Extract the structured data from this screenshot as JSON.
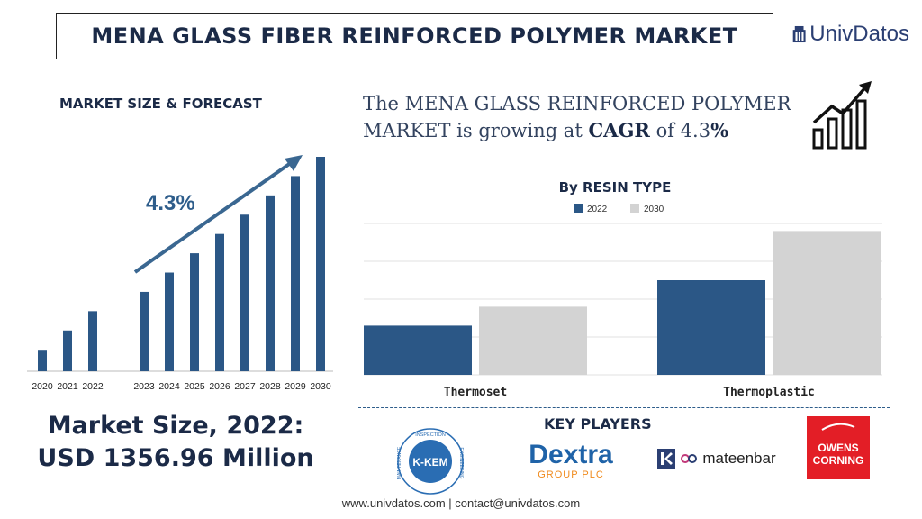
{
  "header": {
    "title": "MENA GLASS FIBER REINFORCED POLYMER MARKET",
    "brand": "UnivDatos"
  },
  "left_panel": {
    "label": "MARKET SIZE & FORECAST",
    "cagr_label": "4.3%",
    "market_size_line1": "Market Size, 2022:",
    "market_size_line2": "USD 1356.96 Million"
  },
  "headline": {
    "part1": "The MENA GLASS REINFORCED POLYMER MARKET is growing at",
    "cagr_word": "CAGR",
    "part2": "of 4.3",
    "percent": "%"
  },
  "resin_chart_title": "By RESIN TYPE",
  "key_players": {
    "label": "KEY PLAYERS",
    "logos": [
      "K-KEM",
      "Dextra",
      "GROUP PLC",
      "mateenbar",
      "OWENS",
      "CORNING",
      "INSPECTION",
      "ENGINEERING",
      "MAINTENANCE"
    ]
  },
  "footer": "www.univdatos.com | contact@univdatos.com",
  "colors": {
    "navy": "#1b2a47",
    "bar_blue": "#2b5786",
    "bar_grey": "#d3d3d3",
    "arrow": "#3a6791"
  },
  "chart_data": [
    {
      "type": "bar",
      "categories": [
        "2020",
        "2021",
        "2022",
        "2023",
        "2024",
        "2025",
        "2026",
        "2027",
        "2028",
        "2029",
        "2030"
      ],
      "values": [
        10,
        19,
        28,
        37,
        46,
        55,
        64,
        73,
        82,
        91,
        100
      ],
      "title": "",
      "xlabel": "",
      "ylabel": "",
      "grid": false
    },
    {
      "type": "bar",
      "categories": [
        "Thermoset",
        "Thermoplastic"
      ],
      "series": [
        {
          "name": "2022",
          "values": [
            13,
            25
          ]
        },
        {
          "name": "2030",
          "values": [
            18,
            38
          ]
        }
      ],
      "title": "By RESIN TYPE",
      "ylim": [
        0,
        40
      ],
      "grid": true,
      "legend": "top-center"
    }
  ]
}
